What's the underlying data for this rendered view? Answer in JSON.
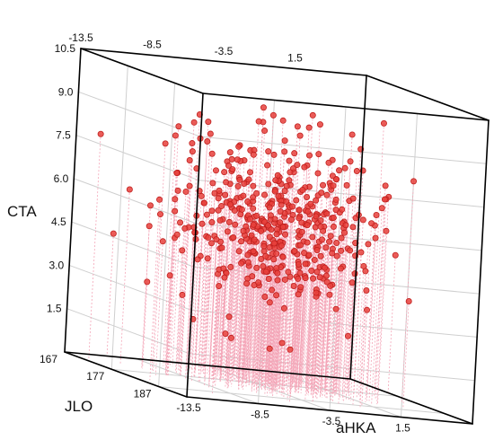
{
  "chart_data": {
    "type": "scatter",
    "projection": "3d",
    "title": "",
    "xlabel": "aHKA",
    "ylabel": "JLO",
    "zlabel": "CTA",
    "xlim": [
      -13.5,
      6.5
    ],
    "ylim": [
      167,
      193
    ],
    "zlim": [
      0,
      10.5
    ],
    "x_ticks": [
      "-13.5",
      "-8.5",
      "-3.5",
      "1.5"
    ],
    "x_ticks_top": [
      "-13.5",
      "-8.5",
      "-3.5",
      "1.5"
    ],
    "y_ticks": [
      "167",
      "177",
      "187"
    ],
    "z_ticks": [
      "1.5",
      "3.0",
      "4.5",
      "6.0",
      "7.5",
      "9.0",
      "10.5"
    ],
    "grid": true,
    "stems": true,
    "marker_color": "#e8413c",
    "marker_edge": "#c0201e",
    "stem_color": "#f4a6b8",
    "approx_point_count": 480
  }
}
